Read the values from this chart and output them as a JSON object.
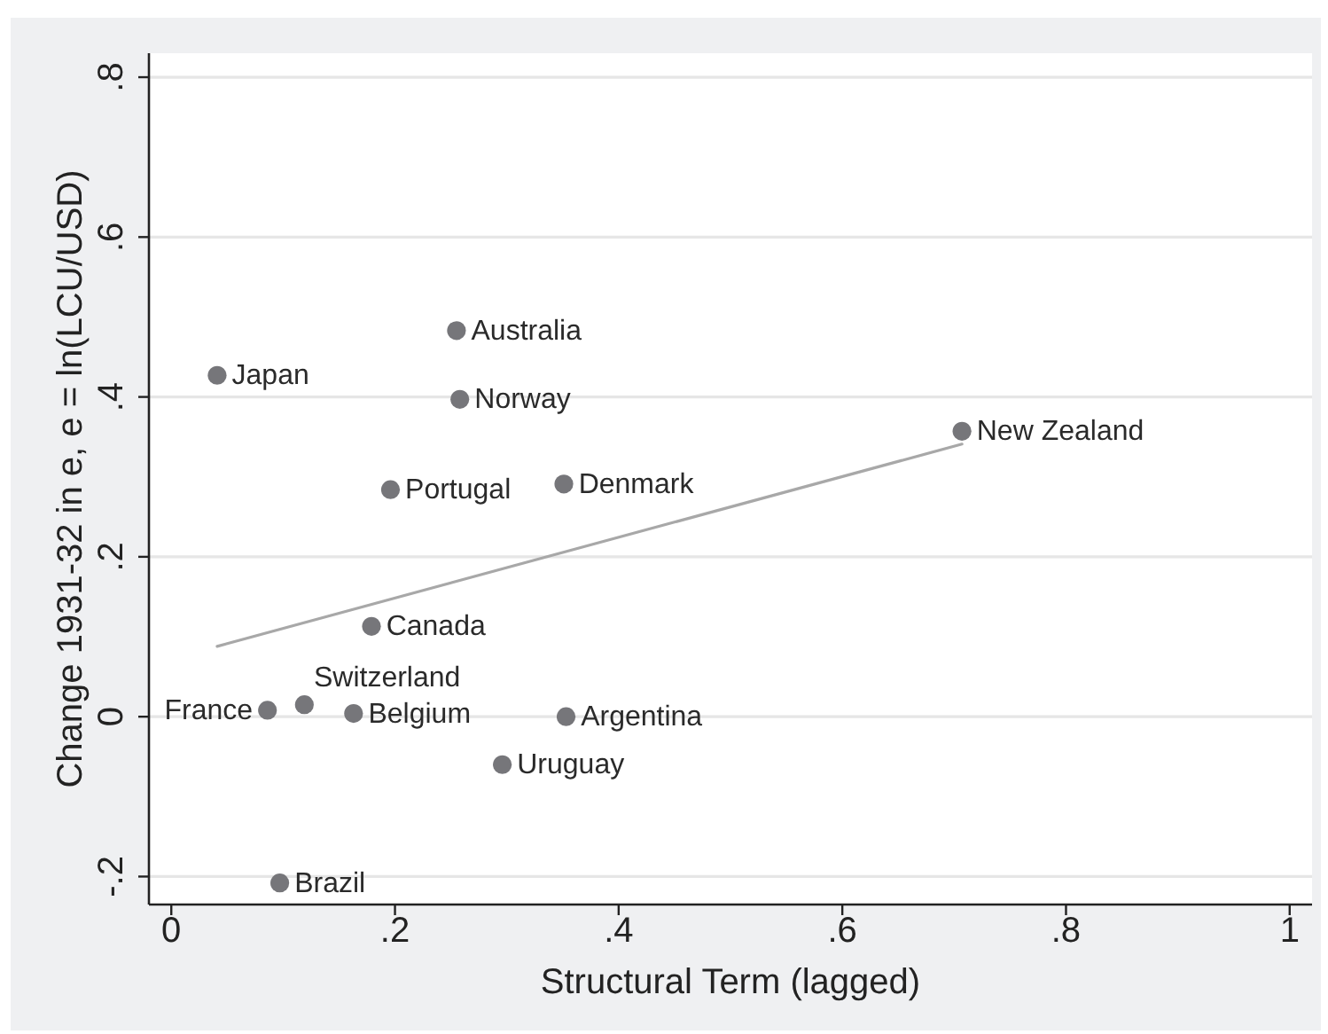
{
  "chart_data": {
    "type": "scatter",
    "xlabel": "Structural Term (lagged)",
    "ylabel": "Change 1931-32 in e, e = ln(LCU/USD)",
    "xlim": [
      -0.02,
      1.02
    ],
    "ylim": [
      -0.235,
      0.83
    ],
    "xticks": [
      0,
      {
        "value": 0.2,
        "label": ".2"
      },
      {
        "value": 0.4,
        "label": ".4"
      },
      {
        "value": 0.6,
        "label": ".6"
      },
      {
        "value": 0.8,
        "label": ".8"
      },
      1
    ],
    "yticks": [
      {
        "value": -0.2,
        "label": "-.2"
      },
      0,
      {
        "value": 0.2,
        "label": ".2"
      },
      {
        "value": 0.4,
        "label": ".4"
      },
      {
        "value": 0.6,
        "label": ".6"
      },
      {
        "value": 0.8,
        "label": ".8"
      }
    ],
    "grid": "y",
    "series": [
      {
        "color": "#76767a",
        "marker": "circle",
        "x": [
          0.041,
          0.255,
          0.258,
          0.707,
          0.196,
          0.351,
          0.179,
          0.086,
          0.119,
          0.163,
          0.353,
          0.296,
          0.097
        ],
        "values": [
          0.427,
          0.483,
          0.397,
          0.357,
          0.284,
          0.291,
          0.113,
          0.008,
          0.015,
          0.004,
          0.0,
          -0.06,
          -0.208
        ],
        "value_labels": [
          "Japan",
          "Australia",
          "Norway",
          "New Zealand",
          "Portugal",
          "Denmark",
          "Canada",
          "France",
          "Switzerland",
          "Belgium",
          "Argentina",
          "Uruguay",
          "Brazil"
        ]
      },
      {
        "type": "line",
        "color": "#a8a8a8",
        "x": [
          0.041,
          0.707
        ],
        "values": [
          0.088,
          0.341
        ]
      }
    ]
  }
}
